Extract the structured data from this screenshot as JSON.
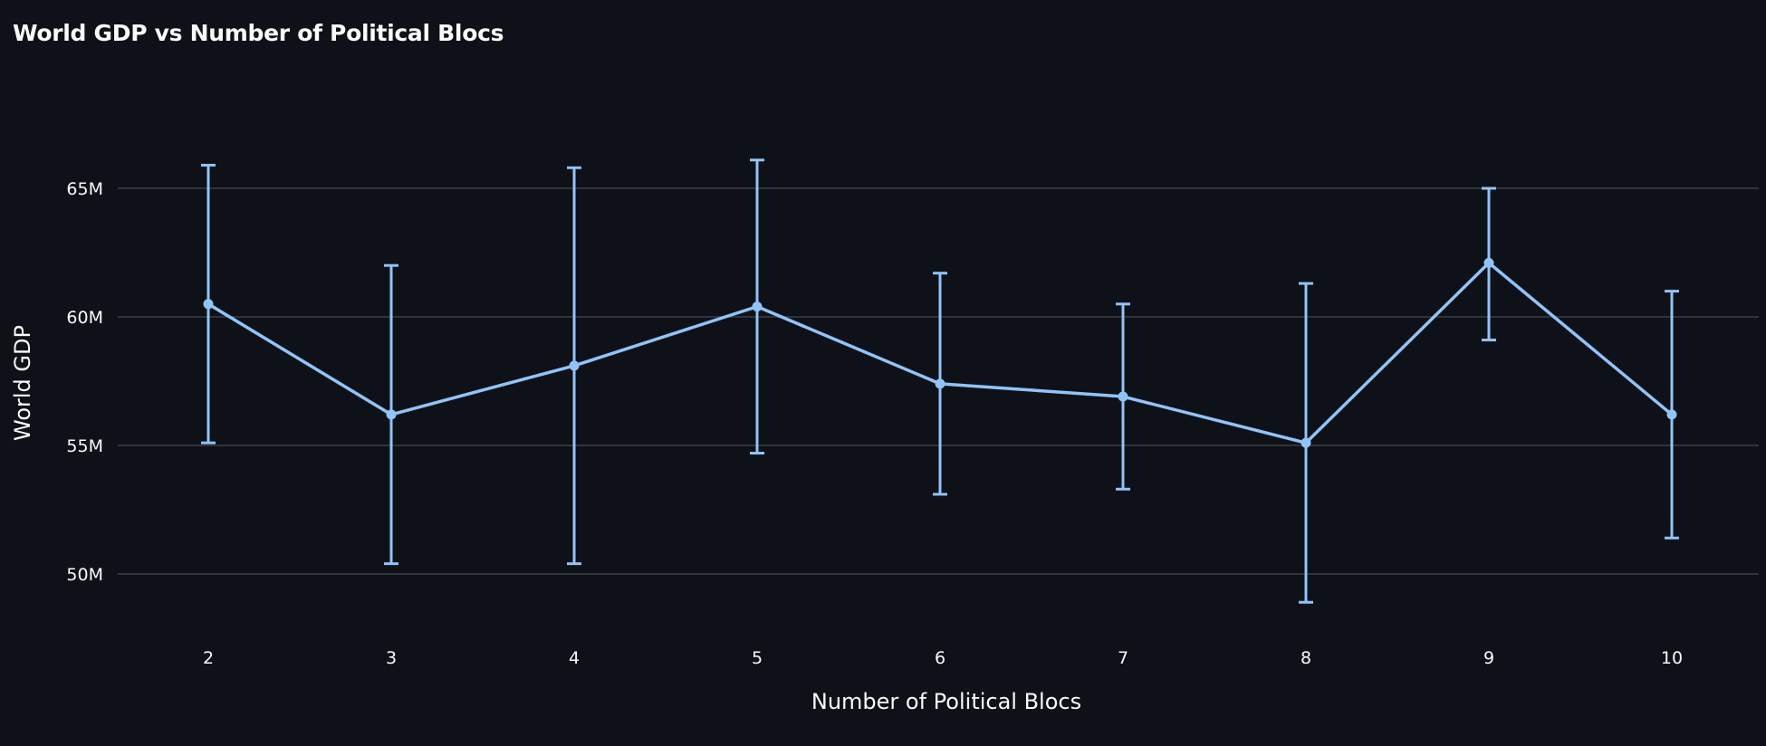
{
  "chart_data": {
    "type": "line",
    "title": "World GDP vs Number of Political Blocs",
    "xlabel": "Number of Political Blocs",
    "ylabel": "World GDP",
    "x": [
      2,
      3,
      4,
      5,
      6,
      7,
      8,
      9,
      10
    ],
    "x_tick_labels": [
      "2",
      "3",
      "4",
      "5",
      "6",
      "7",
      "8",
      "9",
      "10"
    ],
    "y_tick_values": [
      50000000,
      55000000,
      60000000,
      65000000
    ],
    "y_tick_labels": [
      "50M",
      "55M",
      "60M",
      "65M"
    ],
    "ylim": [
      46000000,
      71000000
    ],
    "grid": "horizontal",
    "series": [
      {
        "values": [
          60500000,
          56200000,
          58100000,
          60400000,
          57400000,
          56900000,
          55100000,
          62100000,
          56200000
        ],
        "error_low": [
          55100000,
          50400000,
          50400000,
          54700000,
          53100000,
          53300000,
          48900000,
          59100000,
          51400000
        ],
        "error_high": [
          65900000,
          62000000,
          65800000,
          66100000,
          61700000,
          60500000,
          61300000,
          65000000,
          61000000
        ],
        "color": "#90c4f9"
      }
    ],
    "colors": {
      "background": "#0e1117",
      "grid": "#3b3f47",
      "text": "#fafafa"
    }
  }
}
